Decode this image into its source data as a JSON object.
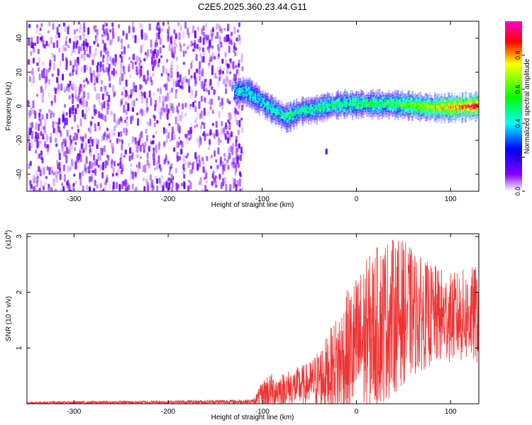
{
  "title": "C2E5.2025.360.23.44.G11",
  "chart_data": [
    {
      "type": "heatmap",
      "title": "C2E5.2025.360.23.44.G11",
      "xlabel": "Height of straight line (km)",
      "ylabel": "Frequency (Hz)",
      "xlim": [
        -350,
        130
      ],
      "ylim": [
        -50,
        50
      ],
      "xticks": [
        -300,
        -200,
        -100,
        0,
        100
      ],
      "yticks": [
        40,
        20,
        0,
        -20,
        -40
      ],
      "noise_region_x": [
        -350,
        -122
      ],
      "signal_track": [
        {
          "x": -130,
          "y": 10
        },
        {
          "x": -115,
          "y": 9
        },
        {
          "x": -100,
          "y": 3
        },
        {
          "x": -90,
          "y": -1
        },
        {
          "x": -75,
          "y": -6
        },
        {
          "x": -60,
          "y": -2
        },
        {
          "x": -45,
          "y": -1
        },
        {
          "x": -30,
          "y": 1
        },
        {
          "x": -15,
          "y": 2
        },
        {
          "x": 0,
          "y": 2
        },
        {
          "x": 20,
          "y": 2
        },
        {
          "x": 40,
          "y": 2
        },
        {
          "x": 60,
          "y": 1
        },
        {
          "x": 80,
          "y": 0
        },
        {
          "x": 100,
          "y": 0
        },
        {
          "x": 130,
          "y": 1
        }
      ],
      "colorbar": {
        "label": "Normalized spectral amplitude",
        "range": [
          0,
          1
        ],
        "ticks": [
          "0.0",
          "0.2",
          "0.4",
          "0.6",
          "0.8"
        ],
        "colors": [
          "#ffffff",
          "#8000ff",
          "#0000ff",
          "#00ffff",
          "#00ff00",
          "#ffff00",
          "#ff0000",
          "#ff00cc"
        ]
      }
    },
    {
      "type": "line",
      "xlabel": "Height of straight line (km)",
      "ylabel": "SNR (10 * v/v)",
      "scale_label": "(x10",
      "scale_exp": "4",
      "xlim": [
        -350,
        130
      ],
      "ylim": [
        0,
        3.05
      ],
      "xticks": [
        -300,
        -200,
        -100,
        0,
        100
      ],
      "yticks": [
        1,
        2,
        3
      ],
      "color": "#ee3333",
      "envelope": [
        {
          "x": -350,
          "mean": 0.02,
          "amp": 0.02
        },
        {
          "x": -200,
          "mean": 0.03,
          "amp": 0.03
        },
        {
          "x": -110,
          "mean": 0.04,
          "amp": 0.04
        },
        {
          "x": -95,
          "mean": 0.2,
          "amp": 0.35
        },
        {
          "x": -80,
          "mean": 0.25,
          "amp": 0.3
        },
        {
          "x": -50,
          "mean": 0.35,
          "amp": 0.4
        },
        {
          "x": -30,
          "mean": 0.55,
          "amp": 0.7
        },
        {
          "x": -10,
          "mean": 0.85,
          "amp": 1.2
        },
        {
          "x": 10,
          "mean": 1.2,
          "amp": 1.4
        },
        {
          "x": 30,
          "mean": 1.5,
          "amp": 1.5
        },
        {
          "x": 50,
          "mean": 1.65,
          "amp": 1.3
        },
        {
          "x": 70,
          "mean": 1.6,
          "amp": 1.0
        },
        {
          "x": 100,
          "mean": 1.55,
          "amp": 0.8
        },
        {
          "x": 130,
          "mean": 1.6,
          "amp": 0.9
        }
      ]
    }
  ]
}
